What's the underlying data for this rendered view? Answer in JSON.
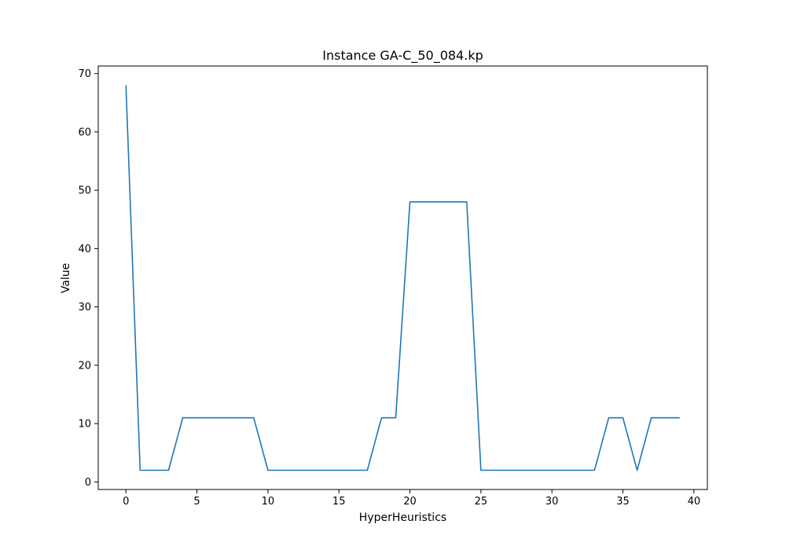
{
  "chart_data": {
    "type": "line",
    "title": "Instance GA-C_50_084.kp",
    "xlabel": "HyperHeuristics",
    "ylabel": "Value",
    "xlim": [
      -1.95,
      40.95
    ],
    "ylim": [
      -1.3,
      71.3
    ],
    "xticks": [
      0,
      5,
      10,
      15,
      20,
      25,
      30,
      35,
      40
    ],
    "yticks": [
      0,
      10,
      20,
      30,
      40,
      50,
      60,
      70
    ],
    "grid": false,
    "series_color": "#1f77b4",
    "x": [
      0,
      1,
      2,
      3,
      4,
      5,
      6,
      7,
      8,
      9,
      10,
      11,
      12,
      13,
      14,
      15,
      16,
      17,
      18,
      19,
      20,
      21,
      22,
      23,
      24,
      25,
      26,
      27,
      28,
      29,
      30,
      31,
      32,
      33,
      34,
      35,
      36,
      37,
      38,
      39
    ],
    "y": [
      68,
      2,
      2,
      2,
      11,
      11,
      11,
      11,
      11,
      11,
      2,
      2,
      2,
      2,
      2,
      2,
      2,
      2,
      11,
      11,
      48,
      48,
      48,
      48,
      48,
      2,
      2,
      2,
      2,
      2,
      2,
      2,
      2,
      2,
      11,
      11,
      2,
      11,
      11,
      11
    ]
  }
}
